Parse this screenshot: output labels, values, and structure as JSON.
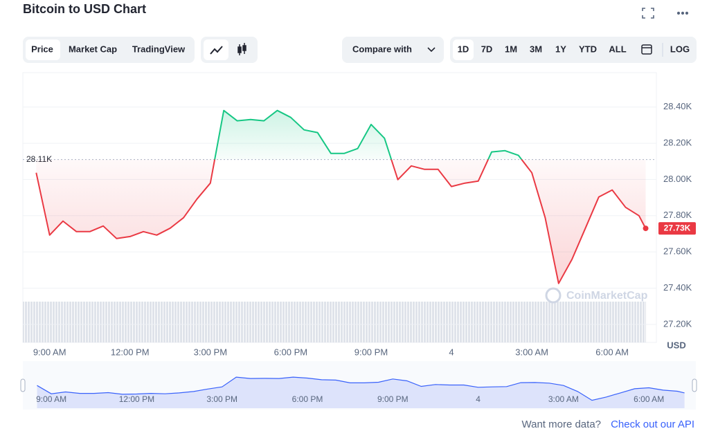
{
  "header": {
    "title": "Bitcoin to USD Chart"
  },
  "toolbar": {
    "tabs": [
      "Price",
      "Market Cap",
      "TradingView"
    ],
    "compare": "Compare with",
    "ranges": [
      "1D",
      "7D",
      "1M",
      "3M",
      "1Y",
      "YTD",
      "ALL"
    ],
    "log": "LOG"
  },
  "footer": {
    "question": "Want more data?",
    "link": "Check out our API"
  },
  "chart_data": {
    "type": "line",
    "watermark": "CoinMarketCap",
    "x": [
      8.5,
      9,
      9.5,
      10,
      10.5,
      11,
      11.5,
      12,
      12.5,
      13,
      13.5,
      14,
      14.5,
      15,
      15.5,
      16,
      16.5,
      17,
      17.5,
      18,
      18.5,
      19,
      19.5,
      20,
      20.5,
      21,
      21.5,
      22,
      22.5,
      23,
      23.5,
      24,
      24.5,
      25,
      25.5,
      26,
      26.5,
      27,
      27.5,
      28,
      28.5,
      29,
      29.5,
      30,
      30.5,
      31,
      31.25
    ],
    "series": [
      {
        "name": "Price",
        "color": "#ea3943",
        "color_above": "#16c784",
        "values": [
          28037,
          27693,
          27770,
          27712,
          27712,
          27743,
          27674,
          27685,
          27712,
          27693,
          27731,
          27789,
          27892,
          27980,
          28381,
          28324,
          28331,
          28324,
          28381,
          28343,
          28274,
          28259,
          28144,
          28144,
          28171,
          28304,
          28228,
          27999,
          28075,
          28056,
          28056,
          27961,
          27980,
          27991,
          28152,
          28159,
          28133,
          28037,
          27789,
          27426,
          27559,
          27731,
          27903,
          27942,
          27846,
          27800,
          27730
        ],
        "value_labels": [
          null,
          null,
          null,
          null,
          null,
          null,
          null,
          null,
          null,
          null,
          null,
          null,
          null,
          null,
          null,
          null,
          null,
          null,
          null,
          null,
          null,
          null,
          null,
          null,
          null,
          null,
          null,
          null,
          null,
          null,
          null,
          null,
          null,
          null,
          null,
          null,
          null,
          null,
          null,
          null,
          null,
          null,
          null,
          null,
          null,
          null,
          "27.73K"
        ]
      }
    ],
    "reference": {
      "value": 28110,
      "label": "28.11K"
    },
    "xlim": [
      8,
      31.65
    ],
    "xticks": [
      {
        "value": 9,
        "label": "9:00 AM"
      },
      {
        "value": 12,
        "label": "12:00 PM"
      },
      {
        "value": 15,
        "label": "3:00 PM"
      },
      {
        "value": 18,
        "label": "6:00 PM"
      },
      {
        "value": 21,
        "label": "9:00 PM"
      },
      {
        "value": 24,
        "label": "4"
      },
      {
        "value": 27,
        "label": "3:00 AM"
      },
      {
        "value": 30,
        "label": "6:00 AM"
      }
    ],
    "ylim": [
      27100,
      28590
    ],
    "yticks": [
      {
        "value": 27200,
        "label": "27.20K"
      },
      {
        "value": 27400,
        "label": "27.40K"
      },
      {
        "value": 27600,
        "label": "27.60K"
      },
      {
        "value": 27800,
        "label": "27.80K"
      },
      {
        "value": 28000,
        "label": "28.00K"
      },
      {
        "value": 28200,
        "label": "28.20K"
      },
      {
        "value": 28400,
        "label": "28.40K"
      }
    ],
    "ylabel": "USD",
    "grid": true
  }
}
